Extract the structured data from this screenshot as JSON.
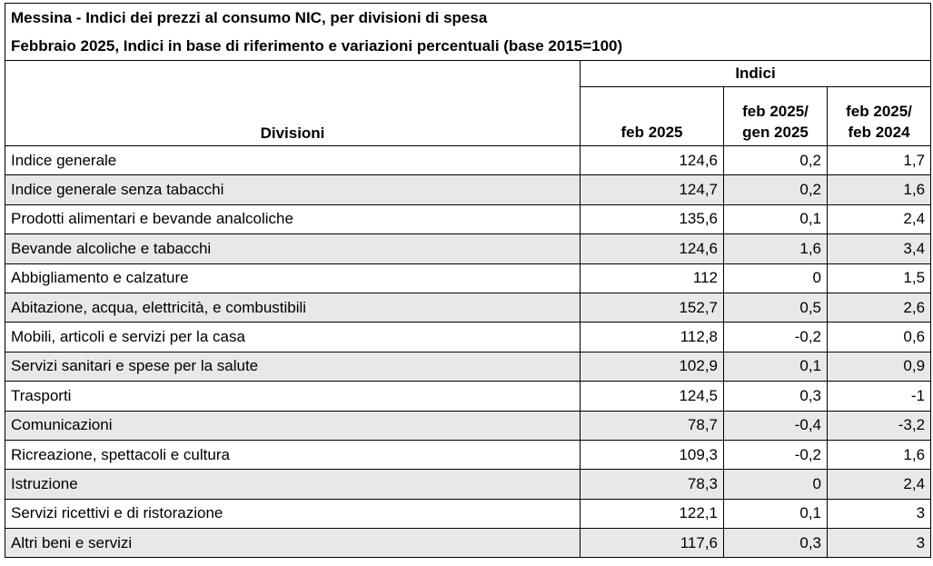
{
  "title": "Messina - Indici dei prezzi al consumo NIC, per divisioni di spesa",
  "subtitle": "Febbraio 2025, Indici in base di riferimento e variazioni percentuali (base 2015=100)",
  "table": {
    "header": {
      "divisions": "Divisioni",
      "group": "Indici",
      "columns": [
        "feb 2025",
        "feb 2025/\ngen 2025",
        "feb 2025/\nfeb 2024"
      ]
    },
    "rows": [
      [
        "Indice generale",
        "124,6",
        "0,2",
        "1,7"
      ],
      [
        "Indice generale senza tabacchi",
        "124,7",
        "0,2",
        "1,6"
      ],
      [
        "Prodotti alimentari e bevande analcoliche",
        "135,6",
        "0,1",
        "2,4"
      ],
      [
        "Bevande alcoliche e tabacchi",
        "124,6",
        "1,6",
        "3,4"
      ],
      [
        "Abbigliamento e calzature",
        "112",
        "0",
        "1,5"
      ],
      [
        "Abitazione, acqua, elettricità, e combustibili",
        "152,7",
        "0,5",
        "2,6"
      ],
      [
        "Mobili, articoli e servizi per la casa",
        "112,8",
        "-0,2",
        "0,6"
      ],
      [
        "Servizi sanitari e spese per la salute",
        "102,9",
        "0,1",
        "0,9"
      ],
      [
        "Trasporti",
        "124,5",
        "0,3",
        "-1"
      ],
      [
        "Comunicazioni",
        "78,7",
        "-0,4",
        "-3,2"
      ],
      [
        "Ricreazione, spettacoli e cultura",
        "109,3",
        "-0,2",
        "1,6"
      ],
      [
        "Istruzione",
        "78,3",
        "0",
        "2,4"
      ],
      [
        "Servizi ricettivi e di ristorazione",
        "122,1",
        "0,1",
        "3"
      ],
      [
        "Altri beni e servizi",
        "117,6",
        "0,3",
        "3"
      ]
    ]
  }
}
